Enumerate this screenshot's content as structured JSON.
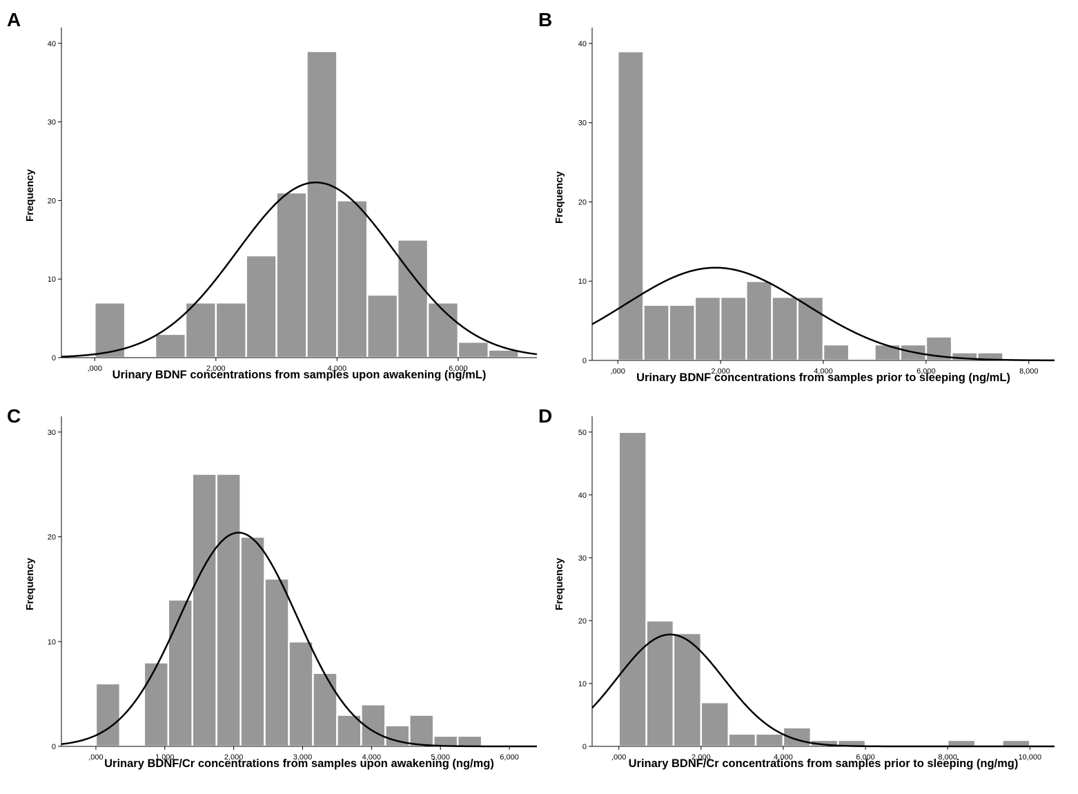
{
  "chart_data": [
    {
      "panel": "A",
      "type": "bar",
      "subtype": "histogram",
      "xlabel": "Urinary BDNF concentrations from samples upon awakening (ng/mL)",
      "ylabel": "Frequency",
      "xlim": [
        -0.55,
        7.3
      ],
      "ylim": [
        0,
        42
      ],
      "xticks": [
        0,
        2,
        4,
        6
      ],
      "xtick_labels": [
        ",000",
        "2,000",
        "4,000",
        "6,000"
      ],
      "yticks": [
        0,
        10,
        20,
        30,
        40
      ],
      "ytick_labels": [
        "0",
        "10",
        "20",
        "30",
        "40"
      ],
      "bins": [
        {
          "x0": 0.0,
          "x1": 0.5,
          "count": 7
        },
        {
          "x0": 0.5,
          "x1": 1.0,
          "count": 0
        },
        {
          "x0": 1.0,
          "x1": 1.5,
          "count": 3
        },
        {
          "x0": 1.5,
          "x1": 2.0,
          "count": 7
        },
        {
          "x0": 2.0,
          "x1": 2.5,
          "count": 7
        },
        {
          "x0": 2.5,
          "x1": 3.0,
          "count": 13
        },
        {
          "x0": 3.0,
          "x1": 3.5,
          "count": 21
        },
        {
          "x0": 3.5,
          "x1": 4.0,
          "count": 39
        },
        {
          "x0": 4.0,
          "x1": 4.5,
          "count": 20
        },
        {
          "x0": 4.5,
          "x1": 5.0,
          "count": 8
        },
        {
          "x0": 5.0,
          "x1": 5.5,
          "count": 15
        },
        {
          "x0": 5.5,
          "x1": 6.0,
          "count": 7
        },
        {
          "x0": 6.0,
          "x1": 6.5,
          "count": 2
        },
        {
          "x0": 6.5,
          "x1": 7.0,
          "count": 1
        }
      ],
      "normal_curve": {
        "mean": 3.65,
        "sd": 1.3,
        "peak": 22.3
      }
    },
    {
      "panel": "B",
      "type": "bar",
      "subtype": "histogram",
      "xlabel": "Urinary BDNF concentrations from samples prior to sleeping (ng/mL)",
      "ylabel": "Frequency",
      "xlim": [
        -0.5,
        8.5
      ],
      "ylim": [
        0,
        42
      ],
      "xticks": [
        0,
        2,
        4,
        6,
        8
      ],
      "xtick_labels": [
        ",000",
        "2,000",
        "4,000",
        "6,000",
        "8,000"
      ],
      "yticks": [
        0,
        10,
        20,
        30,
        40
      ],
      "ytick_labels": [
        "0",
        "10",
        "20",
        "30",
        "40"
      ],
      "bins": [
        {
          "x0": 0.0,
          "x1": 0.5,
          "count": 39
        },
        {
          "x0": 0.5,
          "x1": 1.0,
          "count": 7
        },
        {
          "x0": 1.0,
          "x1": 1.5,
          "count": 7
        },
        {
          "x0": 1.5,
          "x1": 2.0,
          "count": 8
        },
        {
          "x0": 2.0,
          "x1": 2.5,
          "count": 8
        },
        {
          "x0": 2.5,
          "x1": 3.0,
          "count": 10
        },
        {
          "x0": 3.0,
          "x1": 3.5,
          "count": 8
        },
        {
          "x0": 3.5,
          "x1": 4.0,
          "count": 8
        },
        {
          "x0": 4.0,
          "x1": 4.5,
          "count": 2
        },
        {
          "x0": 4.5,
          "x1": 5.0,
          "count": 0
        },
        {
          "x0": 5.0,
          "x1": 5.5,
          "count": 2
        },
        {
          "x0": 5.5,
          "x1": 6.0,
          "count": 2
        },
        {
          "x0": 6.0,
          "x1": 6.5,
          "count": 3
        },
        {
          "x0": 6.5,
          "x1": 7.0,
          "count": 1
        },
        {
          "x0": 7.0,
          "x1": 7.5,
          "count": 1
        }
      ],
      "normal_curve": {
        "mean": 1.9,
        "sd": 1.75,
        "peak": 11.7
      }
    },
    {
      "panel": "C",
      "type": "bar",
      "subtype": "histogram",
      "xlabel": "Urinary BDNF/Cr concentrations from samples upon awakening (ng/mg)",
      "ylabel": "Frequency",
      "xlim": [
        -0.5,
        6.4
      ],
      "ylim": [
        0,
        31.5
      ],
      "xticks": [
        0,
        1,
        2,
        3,
        4,
        5,
        6
      ],
      "xtick_labels": [
        ",000",
        "1,000",
        "2,000",
        "3,000",
        "4,000",
        "5,000",
        "6,000"
      ],
      "yticks": [
        0,
        10,
        20,
        30
      ],
      "ytick_labels": [
        "0",
        "10",
        "20",
        "30"
      ],
      "bins": [
        {
          "x0": 0.0,
          "x1": 0.35,
          "count": 6
        },
        {
          "x0": 0.35,
          "x1": 0.7,
          "count": 0
        },
        {
          "x0": 0.7,
          "x1": 1.05,
          "count": 8
        },
        {
          "x0": 1.05,
          "x1": 1.4,
          "count": 14
        },
        {
          "x0": 1.4,
          "x1": 1.75,
          "count": 26
        },
        {
          "x0": 1.75,
          "x1": 2.1,
          "count": 26
        },
        {
          "x0": 2.1,
          "x1": 2.45,
          "count": 20
        },
        {
          "x0": 2.45,
          "x1": 2.8,
          "count": 16
        },
        {
          "x0": 2.8,
          "x1": 3.15,
          "count": 10
        },
        {
          "x0": 3.15,
          "x1": 3.5,
          "count": 7
        },
        {
          "x0": 3.5,
          "x1": 3.85,
          "count": 3
        },
        {
          "x0": 3.85,
          "x1": 4.2,
          "count": 4
        },
        {
          "x0": 4.2,
          "x1": 4.55,
          "count": 2
        },
        {
          "x0": 4.55,
          "x1": 4.9,
          "count": 3
        },
        {
          "x0": 4.9,
          "x1": 5.25,
          "count": 1
        },
        {
          "x0": 5.25,
          "x1": 5.6,
          "count": 1
        }
      ],
      "normal_curve": {
        "mean": 2.07,
        "sd": 0.85,
        "peak": 20.4
      }
    },
    {
      "panel": "D",
      "type": "bar",
      "subtype": "histogram",
      "xlabel": "Urinary BDNF/Cr concentrations from samples prior to sleeping (ng/mg)",
      "ylabel": "Frequency",
      "xlim": [
        -0.65,
        10.6
      ],
      "ylim": [
        0,
        52.5
      ],
      "xticks": [
        0,
        2,
        4,
        6,
        8,
        10
      ],
      "xtick_labels": [
        ",000",
        "2,000",
        "4,000",
        "6,000",
        "8,000",
        "10,000"
      ],
      "yticks": [
        0,
        10,
        20,
        30,
        40,
        50
      ],
      "ytick_labels": [
        "0",
        "10",
        "20",
        "30",
        "40",
        "50"
      ],
      "bins": [
        {
          "x0": 0.0,
          "x1": 0.67,
          "count": 50
        },
        {
          "x0": 0.67,
          "x1": 1.33,
          "count": 20
        },
        {
          "x0": 1.33,
          "x1": 2.0,
          "count": 18
        },
        {
          "x0": 2.0,
          "x1": 2.67,
          "count": 7
        },
        {
          "x0": 2.67,
          "x1": 3.33,
          "count": 2
        },
        {
          "x0": 3.33,
          "x1": 4.0,
          "count": 2
        },
        {
          "x0": 4.0,
          "x1": 4.67,
          "count": 3
        },
        {
          "x0": 4.67,
          "x1": 5.33,
          "count": 1
        },
        {
          "x0": 5.33,
          "x1": 6.0,
          "count": 1
        },
        {
          "x0": 6.0,
          "x1": 6.67,
          "count": 0
        },
        {
          "x0": 6.67,
          "x1": 7.33,
          "count": 0
        },
        {
          "x0": 7.33,
          "x1": 8.0,
          "count": 0
        },
        {
          "x0": 8.0,
          "x1": 8.67,
          "count": 1
        },
        {
          "x0": 8.67,
          "x1": 9.33,
          "count": 0
        },
        {
          "x0": 9.33,
          "x1": 10.0,
          "count": 1
        }
      ],
      "normal_curve": {
        "mean": 1.25,
        "sd": 1.3,
        "peak": 17.8
      }
    }
  ]
}
